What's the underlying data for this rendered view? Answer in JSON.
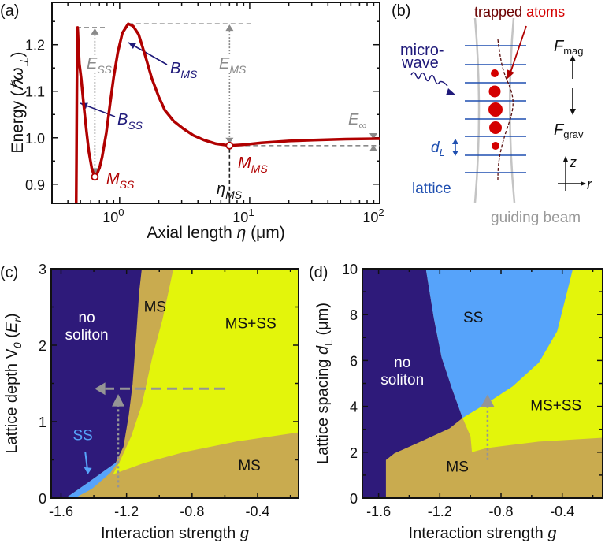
{
  "panel_labels": {
    "a": "(a)",
    "b": "(b)",
    "c": "(c)",
    "d": "(d)"
  },
  "colors": {
    "curve": "#b00000",
    "annotation_gray": "#8a8a8a",
    "annotation_navy": "#1f1a7a",
    "no_soliton": "#2e1a7a",
    "ms": "#c9ab4f",
    "ms_ss": "#e3f50b",
    "ss": "#56a3fa",
    "lattice": "#1f4fb0",
    "atoms": "#d40000"
  },
  "panel_b": {
    "trapped": "trapped",
    "atoms": "atoms",
    "microwave_line1": "micro-",
    "microwave_line2": "wave",
    "f_mag_main": "F",
    "f_mag_sub": "mag",
    "f_grav_main": "F",
    "f_grav_sub": "grav",
    "dl_main": "d",
    "dl_sub": "L",
    "z": "z",
    "r": "r",
    "lattice": "lattice",
    "guiding_beam": "guiding beam"
  },
  "chart_data": [
    {
      "panel": "a",
      "type": "line",
      "xscale": "log",
      "xlim": [
        0.302,
        100
      ],
      "ylim": [
        0.859,
        1.291
      ],
      "xlabel": [
        {
          "t": "Axial length "
        },
        {
          "t": "η",
          "i": true
        },
        {
          "t": " (μm)"
        }
      ],
      "ylabel": [
        {
          "t": "Energy ("
        },
        {
          "t": "ℏω",
          "i": true
        },
        {
          "t": "⊥",
          "sub": true,
          "i": true
        },
        {
          "t": ")"
        }
      ],
      "xticks": [
        {
          "v": 1,
          "base": "10",
          "exp": "0"
        },
        {
          "v": 10,
          "base": "10",
          "exp": "1"
        },
        {
          "v": 100,
          "base": "10",
          "exp": "2"
        }
      ],
      "yticks": [
        {
          "v": 0.9,
          "label": "0.9"
        },
        {
          "v": 1.0,
          "label": "1.0"
        },
        {
          "v": 1.1,
          "label": "1.1"
        },
        {
          "v": 1.2,
          "label": "1.2"
        }
      ],
      "grid": false,
      "series": [
        {
          "x": [
            0.462,
            0.466,
            0.469,
            0.472,
            0.475,
            0.478,
            0.483,
            0.49,
            0.507,
            0.53,
            0.556,
            0.58,
            0.61,
            0.63,
            0.645,
            0.665,
            0.7,
            0.733,
            0.79,
            0.843,
            0.9,
            0.968,
            1.05,
            1.165,
            1.27,
            1.4,
            1.58,
            1.77,
            2.0,
            2.23,
            2.6,
            3.07,
            3.7,
            4.45,
            5.5,
            7.0,
            9.0,
            12.3,
            20,
            31,
            55,
            94,
            100
          ],
          "y": [
            0.8,
            0.95,
            1.1,
            1.2,
            1.237,
            1.225,
            1.195,
            1.16,
            1.127,
            1.07,
            1.014,
            0.97,
            0.935,
            0.922,
            0.916,
            0.92,
            0.935,
            0.958,
            1.01,
            1.071,
            1.13,
            1.183,
            1.225,
            1.245,
            1.24,
            1.222,
            1.175,
            1.127,
            1.088,
            1.059,
            1.036,
            1.02,
            1.005,
            0.995,
            0.987,
            0.983,
            0.985,
            0.989,
            0.993,
            0.995,
            0.997,
            0.998,
            0.998
          ]
        }
      ],
      "markers": [
        {
          "name": "M_SS",
          "x": 0.645,
          "y": 0.916
        },
        {
          "name": "M_MS",
          "x": 7.0,
          "y": 0.983
        }
      ],
      "annotations": {
        "E_SS": [
          {
            "t": "E",
            "i": true
          },
          {
            "t": "SS",
            "sub": true,
            "i": true
          }
        ],
        "E_MS": [
          {
            "t": "E",
            "i": true
          },
          {
            "t": "MS",
            "sub": true,
            "i": true
          }
        ],
        "B_SS": [
          {
            "t": "B",
            "i": true
          },
          {
            "t": "SS",
            "sub": true,
            "i": true
          }
        ],
        "B_MS": [
          {
            "t": "B",
            "i": true
          },
          {
            "t": "MS",
            "sub": true,
            "i": true
          }
        ],
        "M_SS": [
          {
            "t": "M",
            "i": true
          },
          {
            "t": "SS",
            "sub": true,
            "i": true
          }
        ],
        "M_MS": [
          {
            "t": "M",
            "i": true
          },
          {
            "t": "MS",
            "sub": true,
            "i": true
          }
        ],
        "eta_MS": [
          {
            "t": "η",
            "i": true
          },
          {
            "t": "MS",
            "sub": true,
            "i": true
          }
        ],
        "E_inf": [
          {
            "t": "E",
            "i": true
          },
          {
            "t": "∞",
            "sub": true
          }
        ]
      }
    },
    {
      "panel": "c",
      "type": "heatmap",
      "xlim": [
        -1.66,
        -0.15
      ],
      "ylim": [
        0,
        3
      ],
      "xlabel": [
        {
          "t": "Interaction strength "
        },
        {
          "t": "g",
          "i": true
        }
      ],
      "ylabel": [
        {
          "t": "Lattice depth "
        },
        {
          "t": "V",
          "i": false
        },
        {
          "t": "0",
          "sub": true,
          "i": true
        },
        {
          "t": " ("
        },
        {
          "t": "E",
          "i": true
        },
        {
          "t": "r",
          "sub": true,
          "i": true
        },
        {
          "t": ")"
        }
      ],
      "xticks": [
        {
          "v": -1.6,
          "label": "-1.6"
        },
        {
          "v": -1.2,
          "label": "-1.2"
        },
        {
          "v": -0.8,
          "label": "-0.8"
        },
        {
          "v": -0.4,
          "label": "-0.4"
        }
      ],
      "xminor": [
        -1.4,
        -1.0,
        -0.6,
        -0.2
      ],
      "yticks": [
        {
          "v": 0,
          "label": "0"
        },
        {
          "v": 1,
          "label": "1"
        },
        {
          "v": 2,
          "label": "2"
        },
        {
          "v": 3,
          "label": "3"
        }
      ],
      "yminor": [
        0.5,
        1.5,
        2.5
      ],
      "background_region": "ms",
      "regions": [
        {
          "id": "no_soliton",
          "color_key": "no_soliton",
          "polygon": [
            [
              -1.66,
              0
            ],
            [
              -1.572,
              0
            ],
            [
              -1.444,
              0.19
            ],
            [
              -1.267,
              0.46
            ],
            [
              -1.219,
              0.67
            ],
            [
              -1.187,
              1.08
            ],
            [
              -1.163,
              1.49
            ],
            [
              -1.139,
              2.18
            ],
            [
              -1.123,
              2.7
            ],
            [
              -1.107,
              3
            ],
            [
              -1.66,
              3
            ]
          ]
        },
        {
          "id": "ss",
          "color_key": "ss",
          "polygon": [
            [
              -1.572,
              0
            ],
            [
              -1.516,
              0
            ],
            [
              -1.412,
              0.12
            ],
            [
              -1.299,
              0.33
            ],
            [
              -1.243,
              0.5
            ],
            [
              -1.267,
              0.46
            ],
            [
              -1.444,
              0.19
            ]
          ]
        },
        {
          "id": "ms_ss",
          "color_key": "ms_ss",
          "polygon": [
            [
              -1.283,
              0.31
            ],
            [
              -1.243,
              0.47
            ],
            [
              -1.171,
              0.81
            ],
            [
              -1.107,
              1.22
            ],
            [
              -1.043,
              1.84
            ],
            [
              -0.979,
              2.35
            ],
            [
              -0.914,
              3
            ],
            [
              -0.15,
              3
            ],
            [
              -0.15,
              0.86
            ],
            [
              -0.53,
              0.74
            ],
            [
              -0.85,
              0.6
            ],
            [
              -1.091,
              0.46
            ]
          ]
        }
      ],
      "labels": [
        {
          "lines": [
            "no",
            "soliton"
          ],
          "x": -1.443,
          "y": 2.3,
          "color_key": "white"
        },
        {
          "lines": [
            "MS"
          ],
          "x": -1.026,
          "y": 2.44,
          "color_key": "black"
        },
        {
          "lines": [
            "MS+SS"
          ],
          "x": -0.442,
          "y": 2.22,
          "color_key": "black"
        },
        {
          "lines": [
            "MS"
          ],
          "x": -0.45,
          "y": 0.36,
          "color_key": "black"
        },
        {
          "lines": [
            "SS"
          ],
          "x": -1.467,
          "y": 0.76,
          "color_key": "ss"
        }
      ]
    },
    {
      "panel": "d",
      "type": "heatmap",
      "xlim": [
        -1.706,
        -0.136
      ],
      "ylim": [
        0,
        10
      ],
      "xlabel": [
        {
          "t": "Interaction strength "
        },
        {
          "t": "g",
          "i": true
        }
      ],
      "ylabel": [
        {
          "t": "Lattice spacing "
        },
        {
          "t": "d",
          "i": true
        },
        {
          "t": "L",
          "sub": true
        },
        {
          "t": " (μm)"
        }
      ],
      "xticks": [
        {
          "v": -1.6,
          "label": "-1.6"
        },
        {
          "v": -1.2,
          "label": "-1.2"
        },
        {
          "v": -0.8,
          "label": "-0.8"
        },
        {
          "v": -0.4,
          "label": "-0.4"
        }
      ],
      "xminor": [
        -1.4,
        -1.0,
        -0.6,
        -0.2
      ],
      "yticks": [
        {
          "v": 0,
          "label": "0"
        },
        {
          "v": 2,
          "label": "2"
        },
        {
          "v": 4,
          "label": "4"
        },
        {
          "v": 6,
          "label": "6"
        },
        {
          "v": 8,
          "label": "8"
        },
        {
          "v": 10,
          "label": "10"
        }
      ],
      "yminor": [
        1,
        3,
        5,
        7,
        9
      ],
      "background_region": "ms",
      "regions": [
        {
          "id": "no_soliton",
          "color_key": "no_soliton",
          "polygon": [
            [
              -1.706,
              0
            ],
            [
              -1.552,
              0
            ],
            [
              -1.552,
              1.66
            ],
            [
              -1.497,
              1.95
            ],
            [
              -1.325,
              2.46
            ],
            [
              -1.136,
              3.04
            ],
            [
              -1.051,
              3.49
            ],
            [
              -1.119,
              4.75
            ],
            [
              -1.188,
              6.13
            ],
            [
              -1.239,
              7.85
            ],
            [
              -1.291,
              10
            ],
            [
              -1.706,
              10
            ]
          ]
        },
        {
          "id": "ss",
          "color_key": "ss",
          "polygon": [
            [
              -1.291,
              10
            ],
            [
              -1.239,
              7.85
            ],
            [
              -1.188,
              6.13
            ],
            [
              -1.119,
              4.75
            ],
            [
              -1.051,
              3.49
            ],
            [
              -0.896,
              4.12
            ],
            [
              -0.724,
              4.87
            ],
            [
              -0.553,
              5.9
            ],
            [
              -0.433,
              7.27
            ],
            [
              -0.33,
              10
            ]
          ]
        },
        {
          "id": "ms_ss",
          "color_key": "ms_ss",
          "polygon": [
            [
              -1.051,
              3.49
            ],
            [
              -0.999,
              2.69
            ],
            [
              -0.99,
              2.0
            ],
            [
              -0.896,
              2.18
            ],
            [
              -0.553,
              2.46
            ],
            [
              -0.136,
              2.63
            ],
            [
              -0.136,
              10
            ],
            [
              -0.33,
              10
            ],
            [
              -0.433,
              7.27
            ],
            [
              -0.553,
              5.9
            ],
            [
              -0.724,
              4.87
            ],
            [
              -0.896,
              4.12
            ]
          ]
        }
      ],
      "labels": [
        {
          "lines": [
            "SS"
          ],
          "x": -0.982,
          "y": 7.67,
          "color_key": "black"
        },
        {
          "lines": [
            "no",
            "soliton"
          ],
          "x": -1.445,
          "y": 5.7,
          "color_key": "white"
        },
        {
          "lines": [
            "MS+SS"
          ],
          "x": -0.441,
          "y": 3.84,
          "color_key": "black"
        },
        {
          "lines": [
            "MS"
          ],
          "x": -1.085,
          "y": 1.15,
          "color_key": "black"
        }
      ]
    }
  ]
}
